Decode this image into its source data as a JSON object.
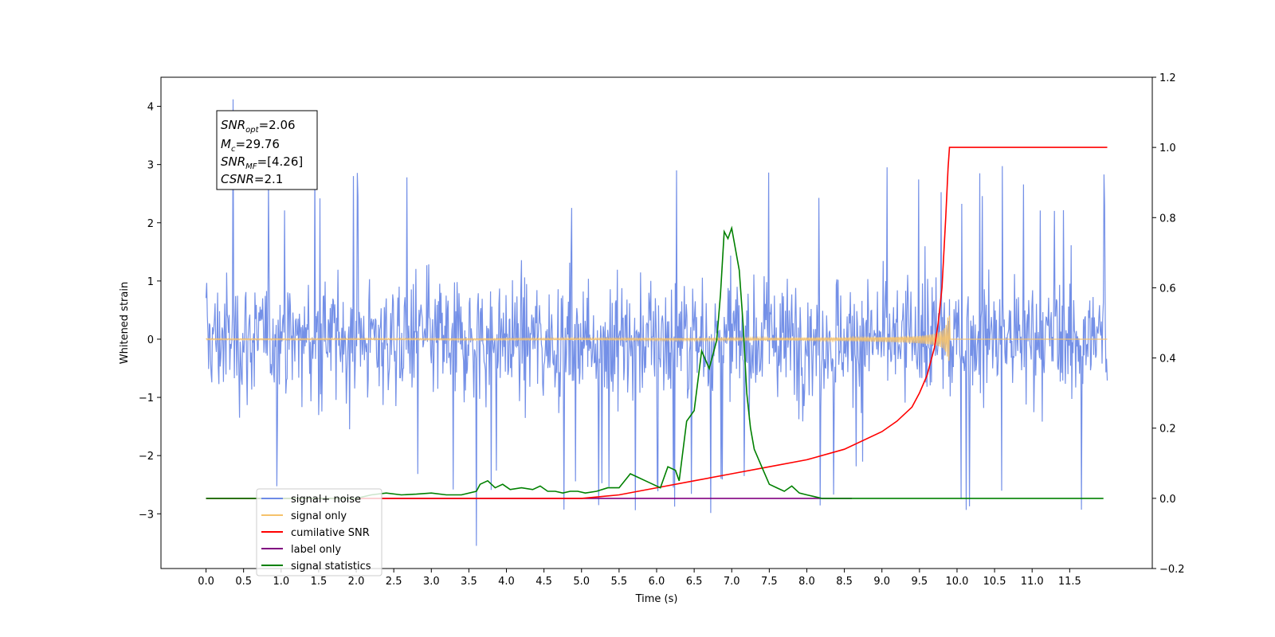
{
  "chart_data": {
    "type": "line",
    "xlabel": "Time (s)",
    "ylabel": "Whitened strain",
    "xlim": [
      -0.6,
      12.6
    ],
    "ylim": [
      -3.94,
      4.5
    ],
    "y2lim": [
      -0.2,
      1.2
    ],
    "xticks": [
      "0.0",
      "0.5",
      "1.0",
      "1.5",
      "2.0",
      "2.5",
      "3.0",
      "3.5",
      "4.0",
      "4.5",
      "5.0",
      "5.5",
      "6.0",
      "6.5",
      "7.0",
      "7.5",
      "8.0",
      "8.5",
      "9.0",
      "9.5",
      "10.0",
      "10.5",
      "11.0",
      "11.5"
    ],
    "xtick_values": [
      0,
      0.5,
      1,
      1.5,
      2,
      2.5,
      3,
      3.5,
      4,
      4.5,
      5,
      5.5,
      6,
      6.5,
      7,
      7.5,
      8,
      8.5,
      9,
      9.5,
      10,
      10.5,
      11,
      11.5
    ],
    "yticks": [
      "4",
      "3",
      "2",
      "1",
      "0",
      "−1",
      "−2",
      "−3"
    ],
    "ytick_values": [
      4,
      3,
      2,
      1,
      0,
      -1,
      -2,
      -3
    ],
    "y2ticks": [
      "1.2",
      "1.0",
      "0.8",
      "0.6",
      "0.4",
      "0.2",
      "0.0",
      "−0.2"
    ],
    "y2tick_values": [
      1.2,
      1.0,
      0.8,
      0.6,
      0.4,
      0.2,
      0.0,
      -0.2
    ],
    "grid": false,
    "legend_position": "lower-left",
    "annotation": {
      "snr_opt": {
        "base": "SNR",
        "sub": "opt",
        "value": "=2.06"
      },
      "mc": {
        "base": "M",
        "sub": "c",
        "value": "=29.76"
      },
      "snr_mf": {
        "base": "SNR",
        "sub": "MF",
        "value": "=[4.26]"
      },
      "csnr": {
        "base": "CSNR",
        "value": "=2.1"
      }
    },
    "series": [
      {
        "name": "signal+ noise",
        "color": "#6d8ae6",
        "axis": "left",
        "x_range": [
          0,
          12
        ],
        "amplitude_band": [
          -1.6,
          1.7
        ],
        "peak_max": 4.12,
        "peak_min": -3.55
      },
      {
        "name": "signal only",
        "color": "#f5c26b",
        "axis": "left",
        "x_range": [
          0,
          12
        ],
        "chirp_peak_time": 9.9,
        "chirp_peak_amplitude": 0.45
      },
      {
        "name": "cumilative SNR",
        "color": "#ff0000",
        "axis": "right",
        "x": [
          0,
          5,
          5.5,
          6,
          6.5,
          7,
          7.5,
          8,
          8.5,
          9,
          9.2,
          9.4,
          9.5,
          9.6,
          9.7,
          9.75,
          9.8,
          9.85,
          9.88,
          9.9,
          10,
          10.5,
          11,
          11.5,
          12
        ],
        "y": [
          0,
          0,
          0.01,
          0.03,
          0.05,
          0.07,
          0.09,
          0.11,
          0.14,
          0.19,
          0.22,
          0.26,
          0.3,
          0.35,
          0.43,
          0.5,
          0.6,
          0.8,
          0.94,
          1.0,
          1.0,
          1.0,
          1.0,
          1.0,
          1.0
        ]
      },
      {
        "name": "label only",
        "color": "#800080",
        "axis": "right",
        "x": [
          0,
          8.6
        ],
        "y": [
          0,
          0
        ]
      },
      {
        "name": "signal statistics",
        "color": "#008000",
        "axis": "right",
        "x": [
          0,
          2.0,
          2.2,
          2.4,
          2.6,
          2.8,
          3.0,
          3.2,
          3.4,
          3.6,
          3.65,
          3.75,
          3.85,
          3.95,
          4.05,
          4.2,
          4.35,
          4.45,
          4.55,
          4.65,
          4.75,
          4.85,
          4.95,
          5.05,
          5.2,
          5.35,
          5.5,
          5.65,
          5.75,
          5.85,
          5.95,
          6.05,
          6.15,
          6.25,
          6.3,
          6.4,
          6.5,
          6.6,
          6.7,
          6.8,
          6.85,
          6.9,
          6.95,
          7.0,
          7.1,
          7.15,
          7.2,
          7.25,
          7.3,
          7.4,
          7.5,
          7.6,
          7.7,
          7.8,
          7.9,
          8.0,
          8.1,
          8.2,
          8.4,
          8.6,
          9,
          10,
          11,
          11.95
        ],
        "y": [
          0,
          0,
          0.01,
          0.015,
          0.01,
          0.012,
          0.015,
          0.01,
          0.01,
          0.02,
          0.04,
          0.05,
          0.03,
          0.04,
          0.025,
          0.03,
          0.025,
          0.035,
          0.02,
          0.02,
          0.015,
          0.02,
          0.02,
          0.015,
          0.02,
          0.03,
          0.03,
          0.07,
          0.06,
          0.05,
          0.04,
          0.03,
          0.09,
          0.08,
          0.05,
          0.22,
          0.25,
          0.42,
          0.37,
          0.45,
          0.58,
          0.76,
          0.74,
          0.77,
          0.65,
          0.5,
          0.3,
          0.2,
          0.14,
          0.09,
          0.04,
          0.03,
          0.02,
          0.035,
          0.015,
          0.01,
          0.005,
          0,
          0,
          0,
          0,
          0,
          0,
          0
        ]
      }
    ]
  }
}
